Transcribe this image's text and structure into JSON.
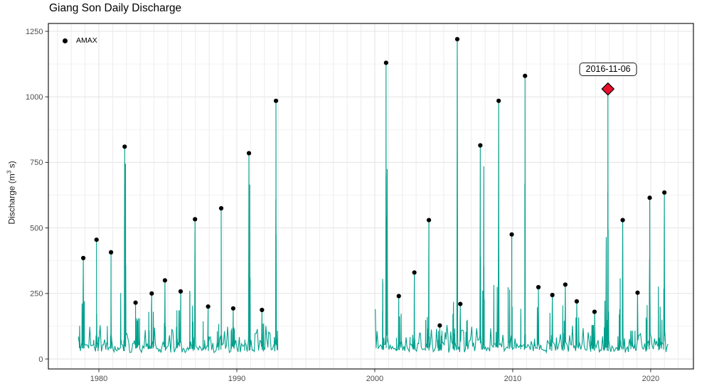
{
  "chart_data": {
    "type": "line",
    "title": "Giang Son Daily Discharge",
    "xlabel": "",
    "ylabel": "Discharge (m³ s)",
    "ylabel_parts": {
      "pre": "Discharge (m",
      "sup": "3",
      "post": " s)"
    },
    "legend": [
      {
        "label": "AMAX",
        "marker": "point",
        "color": "#000000"
      }
    ],
    "legend_position": "inside-top-left",
    "grid": "on",
    "x_ticks": [
      1980,
      1990,
      2000,
      2010,
      2020
    ],
    "x_tick_labels": [
      "1980",
      "1990",
      "2000",
      "2010",
      "2020"
    ],
    "y_ticks": [
      0,
      250,
      500,
      750,
      1000,
      1250
    ],
    "y_tick_labels": [
      "0",
      "250",
      "500",
      "750",
      "1000",
      "1250"
    ],
    "xlim": [
      1976.34,
      2023.1
    ],
    "ylim": [
      -38,
      1280
    ],
    "line_color": "#00A08C",
    "point_color": "#000000",
    "grid_color_major": "#E3E3E3",
    "grid_color_minor": "#F3F3F3",
    "panel_border_color": "#1a1a1a",
    "highlight": {
      "label": "2016-11-06",
      "x": 2016.9,
      "value": 1030,
      "marker": "diamond",
      "fill": "#E8112D",
      "stroke": "#000000"
    },
    "segments": [
      {
        "start": 1978.51,
        "end": 1993.0,
        "start_value": 85
      },
      {
        "start": 2000.04,
        "end": 2021.3,
        "start_value": 190
      }
    ],
    "amax_points": [
      {
        "x": 1978.87,
        "value": 385
      },
      {
        "x": 1979.83,
        "value": 455
      },
      {
        "x": 1980.88,
        "value": 407
      },
      {
        "x": 1981.87,
        "value": 810
      },
      {
        "x": 1982.66,
        "value": 215
      },
      {
        "x": 1983.83,
        "value": 250
      },
      {
        "x": 1984.79,
        "value": 300
      },
      {
        "x": 1985.93,
        "value": 258
      },
      {
        "x": 1986.97,
        "value": 533
      },
      {
        "x": 1987.92,
        "value": 200
      },
      {
        "x": 1988.87,
        "value": 575
      },
      {
        "x": 1989.74,
        "value": 193
      },
      {
        "x": 1990.88,
        "value": 785
      },
      {
        "x": 1991.82,
        "value": 187
      },
      {
        "x": 1992.84,
        "value": 985
      },
      {
        "x": 2000.82,
        "value": 1130
      },
      {
        "x": 2001.74,
        "value": 240
      },
      {
        "x": 2002.87,
        "value": 330
      },
      {
        "x": 2003.92,
        "value": 530
      },
      {
        "x": 2004.71,
        "value": 128
      },
      {
        "x": 2005.98,
        "value": 1220
      },
      {
        "x": 2006.2,
        "value": 210
      },
      {
        "x": 2007.65,
        "value": 815
      },
      {
        "x": 2008.98,
        "value": 985
      },
      {
        "x": 2009.93,
        "value": 475
      },
      {
        "x": 2010.89,
        "value": 1080
      },
      {
        "x": 2011.86,
        "value": 274
      },
      {
        "x": 2012.87,
        "value": 244
      },
      {
        "x": 2013.81,
        "value": 284
      },
      {
        "x": 2014.64,
        "value": 220
      },
      {
        "x": 2015.93,
        "value": 180
      },
      {
        "x": 2017.97,
        "value": 530
      },
      {
        "x": 2019.05,
        "value": 253
      },
      {
        "x": 2019.93,
        "value": 615
      },
      {
        "x": 2020.99,
        "value": 635
      }
    ],
    "secondary_peaks": [
      [
        1981.93,
        745
      ],
      [
        1990.93,
        665
      ],
      [
        2000.9,
        725
      ],
      [
        2007.9,
        735
      ],
      [
        2016.78,
        465
      ]
    ]
  }
}
